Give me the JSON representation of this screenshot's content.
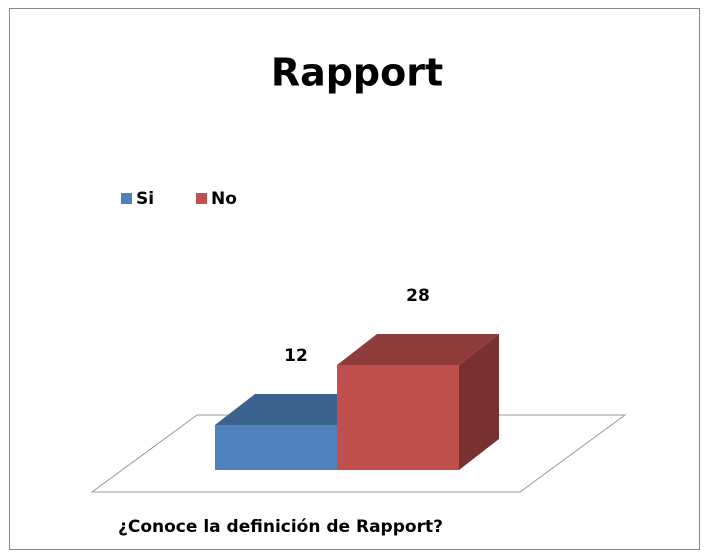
{
  "chart_data": {
    "type": "bar3d",
    "title": "Rapport",
    "categories": [
      "¿Conoce la definición de Rapport?"
    ],
    "series": [
      {
        "name": "Si",
        "color": "#4f81bd",
        "values": [
          12
        ]
      },
      {
        "name": "No",
        "color": "#c0504d",
        "values": [
          28
        ]
      }
    ],
    "legend": "top-left"
  }
}
